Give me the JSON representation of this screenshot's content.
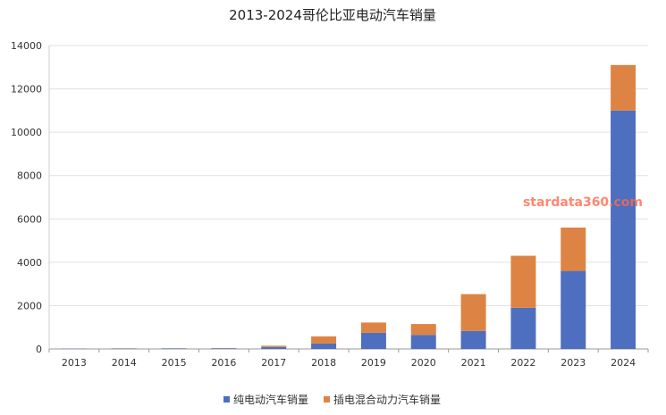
{
  "chart_data": {
    "type": "bar",
    "stacked": true,
    "title": "2013-2024哥伦比亚电动汽车销量",
    "categories": [
      "2013",
      "2014",
      "2015",
      "2016",
      "2017",
      "2018",
      "2019",
      "2020",
      "2021",
      "2022",
      "2023",
      "2024"
    ],
    "series": [
      {
        "name": "纯电动汽车销量",
        "color": "#4e6fbf",
        "values": [
          15,
          20,
          25,
          30,
          90,
          250,
          750,
          650,
          830,
          1900,
          3600,
          11000
        ]
      },
      {
        "name": "插电混合动力汽车销量",
        "color": "#dd8444",
        "values": [
          5,
          5,
          5,
          10,
          60,
          330,
          470,
          500,
          1700,
          2400,
          2000,
          2100
        ]
      }
    ],
    "ylim": [
      0,
      14000
    ],
    "yticks": [
      "0",
      "2000",
      "4000",
      "6000",
      "8000",
      "10000",
      "12000",
      "14000"
    ],
    "grid": true,
    "legend_position": "bottom-center",
    "watermark": "stardata360.com"
  }
}
